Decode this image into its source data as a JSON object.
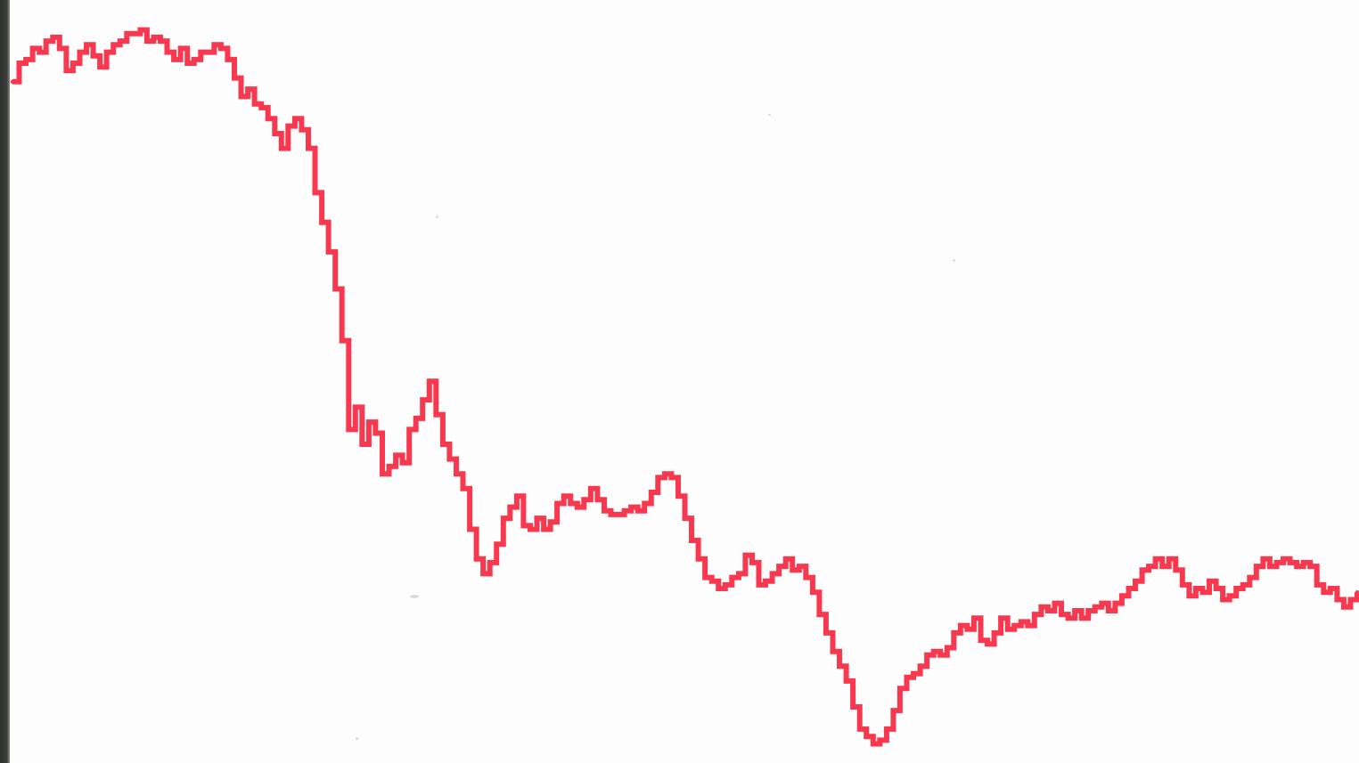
{
  "chart_data": {
    "type": "line",
    "title": "",
    "xlabel": "",
    "ylabel": "",
    "grid": false,
    "legend": "none",
    "line_color": "#f8384f",
    "xlim": [
      0,
      100
    ],
    "ylim": [
      0,
      100
    ],
    "series": [
      {
        "values": [
          [
            0.0,
            91.0
          ],
          [
            0.5,
            93.5
          ],
          [
            1.0,
            94.0
          ],
          [
            1.5,
            95.5
          ],
          [
            2.0,
            95.0
          ],
          [
            2.5,
            96.5
          ],
          [
            3.0,
            97.0
          ],
          [
            3.5,
            95.5
          ],
          [
            4.0,
            92.5
          ],
          [
            4.5,
            93.5
          ],
          [
            5.0,
            95.0
          ],
          [
            5.5,
            96.0
          ],
          [
            6.0,
            94.5
          ],
          [
            6.5,
            93.0
          ],
          [
            7.0,
            95.0
          ],
          [
            7.5,
            96.0
          ],
          [
            8.0,
            96.5
          ],
          [
            8.5,
            97.5
          ],
          [
            9.0,
            97.5
          ],
          [
            9.5,
            98.0
          ],
          [
            10.0,
            96.5
          ],
          [
            10.5,
            97.0
          ],
          [
            11.0,
            96.5
          ],
          [
            11.5,
            95.0
          ],
          [
            12.0,
            94.0
          ],
          [
            12.5,
            95.5
          ],
          [
            13.0,
            93.5
          ],
          [
            13.5,
            94.0
          ],
          [
            14.0,
            95.0
          ],
          [
            14.5,
            95.0
          ],
          [
            15.0,
            96.0
          ],
          [
            15.5,
            95.5
          ],
          [
            16.0,
            94.0
          ],
          [
            16.5,
            91.5
          ],
          [
            17.0,
            89.0
          ],
          [
            17.5,
            90.0
          ],
          [
            18.0,
            88.0
          ],
          [
            18.5,
            87.5
          ],
          [
            19.0,
            86.0
          ],
          [
            19.5,
            84.0
          ],
          [
            20.0,
            82.0
          ],
          [
            20.5,
            85.0
          ],
          [
            21.0,
            86.0
          ],
          [
            21.5,
            84.5
          ],
          [
            22.0,
            82.0
          ],
          [
            22.5,
            76.0
          ],
          [
            23.0,
            72.0
          ],
          [
            23.5,
            68.0
          ],
          [
            24.0,
            63.0
          ],
          [
            24.5,
            56.0
          ],
          [
            25.0,
            44.0
          ],
          [
            25.5,
            47.0
          ],
          [
            26.0,
            42.0
          ],
          [
            26.5,
            45.0
          ],
          [
            27.0,
            43.5
          ],
          [
            27.5,
            38.0
          ],
          [
            28.0,
            39.0
          ],
          [
            28.5,
            40.5
          ],
          [
            29.0,
            39.5
          ],
          [
            29.5,
            44.0
          ],
          [
            30.0,
            45.5
          ],
          [
            30.5,
            48.0
          ],
          [
            31.0,
            50.5
          ],
          [
            31.5,
            46.0
          ],
          [
            32.0,
            42.0
          ],
          [
            32.5,
            40.0
          ],
          [
            33.0,
            38.0
          ],
          [
            33.5,
            36.0
          ],
          [
            34.0,
            30.5
          ],
          [
            34.5,
            26.5
          ],
          [
            35.0,
            24.5
          ],
          [
            35.5,
            26.0
          ],
          [
            36.0,
            28.5
          ],
          [
            36.5,
            32.0
          ],
          [
            37.0,
            33.5
          ],
          [
            37.5,
            35.0
          ],
          [
            38.0,
            31.0
          ],
          [
            38.5,
            30.5
          ],
          [
            39.0,
            32.0
          ],
          [
            39.5,
            30.5
          ],
          [
            40.0,
            31.5
          ],
          [
            40.5,
            34.0
          ],
          [
            41.0,
            35.0
          ],
          [
            41.5,
            34.0
          ],
          [
            42.0,
            33.5
          ],
          [
            42.5,
            34.5
          ],
          [
            43.0,
            36.0
          ],
          [
            43.5,
            34.5
          ],
          [
            44.0,
            33.0
          ],
          [
            44.5,
            32.5
          ],
          [
            45.0,
            32.5
          ],
          [
            45.5,
            33.0
          ],
          [
            46.0,
            33.5
          ],
          [
            46.5,
            33.0
          ],
          [
            47.0,
            34.0
          ],
          [
            47.5,
            35.5
          ],
          [
            48.0,
            37.5
          ],
          [
            48.5,
            38.0
          ],
          [
            49.0,
            37.5
          ],
          [
            49.5,
            35.0
          ],
          [
            50.0,
            32.0
          ],
          [
            50.5,
            29.0
          ],
          [
            51.0,
            26.5
          ],
          [
            51.5,
            24.0
          ],
          [
            52.0,
            23.5
          ],
          [
            52.5,
            22.5
          ],
          [
            53.0,
            23.0
          ],
          [
            53.5,
            24.0
          ],
          [
            54.0,
            24.5
          ],
          [
            54.5,
            27.0
          ],
          [
            55.0,
            26.0
          ],
          [
            55.5,
            23.0
          ],
          [
            56.0,
            23.5
          ],
          [
            56.5,
            24.5
          ],
          [
            57.0,
            25.5
          ],
          [
            57.5,
            26.5
          ],
          [
            58.0,
            25.0
          ],
          [
            58.5,
            25.5
          ],
          [
            59.0,
            24.0
          ],
          [
            59.5,
            22.0
          ],
          [
            60.0,
            19.0
          ],
          [
            60.5,
            16.5
          ],
          [
            61.0,
            14.0
          ],
          [
            61.5,
            12.0
          ],
          [
            62.0,
            10.0
          ],
          [
            62.5,
            6.5
          ],
          [
            63.0,
            3.5
          ],
          [
            63.5,
            2.5
          ],
          [
            64.0,
            1.5
          ],
          [
            64.5,
            2.0
          ],
          [
            65.0,
            3.5
          ],
          [
            65.5,
            6.0
          ],
          [
            66.0,
            9.0
          ],
          [
            66.5,
            10.5
          ],
          [
            67.0,
            11.0
          ],
          [
            67.5,
            12.0
          ],
          [
            68.0,
            13.5
          ],
          [
            68.5,
            14.0
          ],
          [
            69.0,
            13.5
          ],
          [
            69.5,
            14.5
          ],
          [
            70.0,
            16.5
          ],
          [
            70.5,
            17.5
          ],
          [
            71.0,
            17.0
          ],
          [
            71.5,
            18.5
          ],
          [
            72.0,
            15.5
          ],
          [
            72.5,
            15.0
          ],
          [
            73.0,
            16.5
          ],
          [
            73.5,
            18.5
          ],
          [
            74.0,
            17.0
          ],
          [
            74.5,
            17.5
          ],
          [
            75.0,
            18.0
          ],
          [
            75.5,
            17.5
          ],
          [
            76.0,
            19.0
          ],
          [
            76.5,
            20.0
          ],
          [
            77.0,
            19.5
          ],
          [
            77.5,
            20.5
          ],
          [
            78.0,
            19.0
          ],
          [
            78.5,
            18.5
          ],
          [
            79.0,
            19.5
          ],
          [
            79.5,
            18.5
          ],
          [
            80.0,
            19.5
          ],
          [
            80.5,
            20.0
          ],
          [
            81.0,
            20.5
          ],
          [
            81.5,
            19.5
          ],
          [
            82.0,
            20.5
          ],
          [
            82.5,
            21.5
          ],
          [
            83.0,
            22.5
          ],
          [
            83.5,
            23.5
          ],
          [
            84.0,
            25.0
          ],
          [
            84.5,
            25.5
          ],
          [
            85.0,
            26.5
          ],
          [
            85.5,
            25.5
          ],
          [
            86.0,
            26.5
          ],
          [
            86.5,
            25.0
          ],
          [
            87.0,
            23.0
          ],
          [
            87.5,
            21.5
          ],
          [
            88.0,
            22.5
          ],
          [
            88.5,
            22.0
          ],
          [
            89.0,
            23.5
          ],
          [
            89.5,
            22.5
          ],
          [
            90.0,
            21.0
          ],
          [
            90.5,
            21.5
          ],
          [
            91.0,
            22.5
          ],
          [
            91.5,
            23.0
          ],
          [
            92.0,
            24.0
          ],
          [
            92.5,
            25.5
          ],
          [
            93.0,
            26.5
          ],
          [
            93.5,
            25.5
          ],
          [
            94.0,
            26.0
          ],
          [
            94.5,
            26.5
          ],
          [
            95.0,
            26.0
          ],
          [
            95.5,
            25.5
          ],
          [
            96.0,
            26.0
          ],
          [
            96.5,
            25.5
          ],
          [
            97.0,
            23.0
          ],
          [
            97.5,
            22.0
          ],
          [
            98.0,
            22.5
          ],
          [
            98.5,
            21.0
          ],
          [
            99.0,
            20.0
          ],
          [
            99.5,
            21.0
          ],
          [
            100.0,
            22.0
          ]
        ]
      }
    ]
  }
}
